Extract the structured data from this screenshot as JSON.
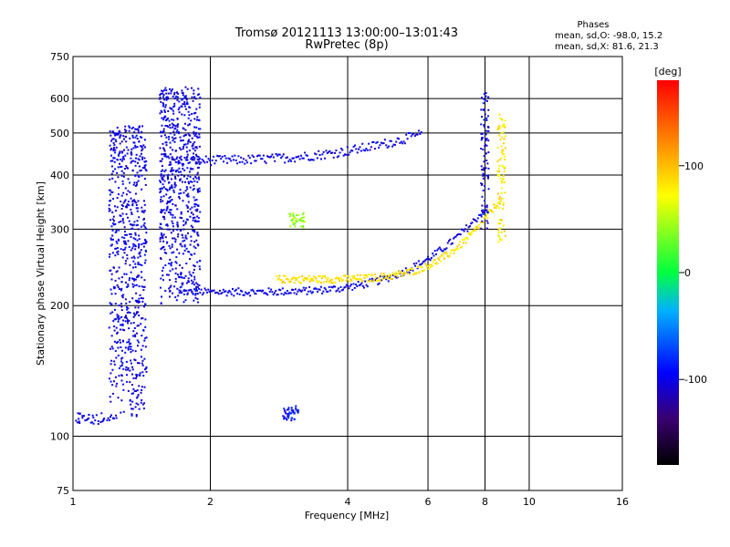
{
  "chart_data": {
    "type": "scatter",
    "title": "Tromsø 20121113 13:00:00–13:01:43",
    "subtitle": "RwPretec (8p)",
    "info": {
      "heading": "Phases",
      "line_o": "mean, sd,O: -98.0, 15.2",
      "line_x": "mean, sd,X:  81.6, 21.3"
    },
    "xlabel": "Frequency [MHz]",
    "ylabel": "Stationary phase Virtual Height [km]",
    "x_scale": "log",
    "y_scale": "log",
    "xlim": [
      1,
      16
    ],
    "ylim": [
      75,
      750
    ],
    "xticks": [
      1,
      2,
      4,
      6,
      8,
      10,
      16
    ],
    "yticks": [
      75,
      100,
      200,
      300,
      400,
      500,
      600,
      750
    ],
    "xgrid": [
      2,
      4,
      6,
      8,
      10
    ],
    "ygrid": [
      100,
      200,
      300,
      400,
      500,
      600
    ],
    "grid": true,
    "colorbar": {
      "label": "[deg]",
      "range": [
        -180,
        180
      ],
      "ticks": [
        -100,
        0,
        100
      ]
    },
    "series": [
      {
        "kind": "o_trace_F",
        "phase": -100,
        "x_range": [
          1.75,
          8.0
        ],
        "y_base": 215
      },
      {
        "kind": "o_trace_multi",
        "phase": -100,
        "x_range": [
          1.65,
          5.8
        ],
        "y_base": 432
      },
      {
        "kind": "x_trace_F",
        "phase": 85,
        "x_range": [
          2.8,
          8.7
        ],
        "y_base": 230
      },
      {
        "kind": "o_cusp_vertical",
        "phase": -100,
        "x": 8.0,
        "y_range": [
          300,
          620
        ]
      },
      {
        "kind": "x_cusp_vertical",
        "phase": 80,
        "x": 8.7,
        "y_range": [
          280,
          560
        ]
      },
      {
        "kind": "e_spread",
        "phase": -100,
        "x_range": [
          1.2,
          1.45
        ],
        "y_range": [
          110,
          520
        ]
      },
      {
        "kind": "spread_column",
        "phase": -100,
        "x_range": [
          1.55,
          1.9
        ],
        "y_range": [
          200,
          640
        ]
      },
      {
        "kind": "low_trace",
        "phase": -100,
        "x_range": [
          1.0,
          1.25
        ],
        "y_base": 110
      },
      {
        "kind": "cluster",
        "phase": 40,
        "x": 3.1,
        "y": 315
      },
      {
        "kind": "cluster",
        "phase": -90,
        "x": 3.0,
        "y": 113
      }
    ]
  }
}
